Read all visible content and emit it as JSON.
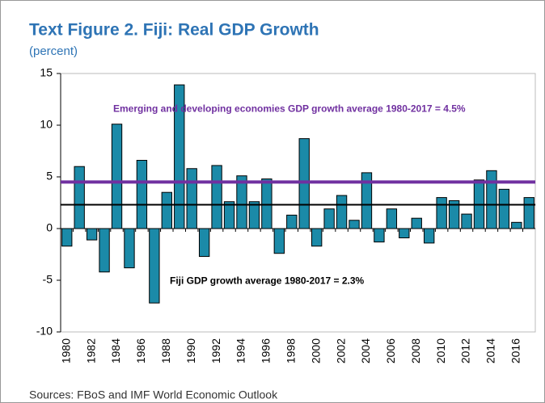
{
  "chart_data": {
    "type": "bar",
    "title": "Text Figure 2. Fiji: Real GDP Growth",
    "subtitle": "(percent)",
    "source": "Sources: FBoS and IMF World Economic Outlook",
    "categories": [
      "1980",
      null,
      "1982",
      null,
      "1984",
      null,
      "1986",
      null,
      "1988",
      null,
      "1990",
      null,
      "1992",
      null,
      "1994",
      null,
      "1996",
      null,
      "1998",
      null,
      "2000",
      null,
      "2002",
      null,
      "2004",
      null,
      "2006",
      null,
      "2008",
      null,
      "2010",
      null,
      "2012",
      null,
      "2014",
      null,
      "2016",
      null
    ],
    "values": [
      -1.7,
      6.0,
      -1.1,
      -4.2,
      10.1,
      -3.8,
      6.6,
      -7.2,
      3.5,
      13.9,
      5.8,
      -2.7,
      6.1,
      2.6,
      5.1,
      2.6,
      4.8,
      -2.4,
      1.3,
      8.7,
      -1.7,
      1.9,
      3.2,
      0.8,
      5.4,
      -1.3,
      1.9,
      -0.9,
      1.0,
      -1.4,
      3.0,
      2.7,
      1.4,
      4.7,
      5.6,
      3.8,
      0.6,
      3.0
    ],
    "color": "#1b8aa8",
    "ylim": [
      -10,
      15
    ],
    "yticks": [
      -10,
      -5,
      0,
      5,
      10,
      15
    ],
    "reference_lines": [
      {
        "label": "Emerging and developing economies GDP growth average 1980-2017 = 4.5%",
        "value": 4.5,
        "color": "#7030a0"
      },
      {
        "label": "Fiji GDP growth average 1980-2017 = 2.3%",
        "value": 2.3,
        "color": "#000000"
      }
    ]
  }
}
